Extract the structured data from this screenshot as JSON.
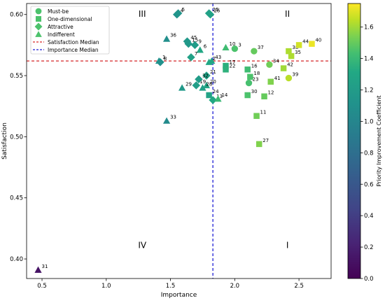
{
  "chart_data": {
    "type": "scatter",
    "xlabel": "Importance",
    "ylabel": "Satisfaction",
    "xlim": [
      0.38,
      2.75
    ],
    "ylim": [
      0.384,
      0.609
    ],
    "xticks": [
      0.5,
      1.0,
      1.5,
      2.0,
      2.5
    ],
    "yticks": [
      0.4,
      0.45,
      0.5,
      0.55,
      0.6
    ],
    "xtick_labels": [
      "0.5",
      "1.0",
      "1.5",
      "2.0",
      "2.5"
    ],
    "ytick_labels": [
      "0.40",
      "0.45",
      "0.50",
      "0.55",
      "0.60"
    ],
    "grid": false,
    "legend_position": "upper left",
    "legend": [
      {
        "label": "Must-be",
        "marker": "circle"
      },
      {
        "label": "One-dimensional",
        "marker": "square"
      },
      {
        "label": "Attractive",
        "marker": "diamond"
      },
      {
        "label": "Indifferent",
        "marker": "triangle"
      },
      {
        "label": "Satisfaction Median",
        "marker": "red-dashed-line"
      },
      {
        "label": "Importance Median",
        "marker": "blue-dashed-line"
      }
    ],
    "reference_lines": {
      "satisfaction_median": 0.562,
      "importance_median": 1.83,
      "satisfaction_color": "#d62728",
      "importance_color": "#1f1fd6"
    },
    "quadrant_labels": [
      {
        "text": "III",
        "x": 1.28,
        "y": 0.6
      },
      {
        "text": "II",
        "x": 2.41,
        "y": 0.6
      },
      {
        "text": "IV",
        "x": 1.28,
        "y": 0.411
      },
      {
        "text": "I",
        "x": 2.41,
        "y": 0.411
      }
    ],
    "colorbar": {
      "label": "Priority Improvement Coefficient",
      "min": 0.0,
      "max": 1.75,
      "ticks": [
        0.0,
        0.2,
        0.4,
        0.6,
        0.8,
        1.0,
        1.2,
        1.4,
        1.6
      ],
      "tick_labels": [
        "0.0",
        "0.2",
        "0.4",
        "0.6",
        "0.8",
        "1.0",
        "1.2",
        "1.4",
        "1.6"
      ],
      "colormap": "viridis"
    },
    "points": [
      {
        "label": "1",
        "x": 1.41,
        "y": 0.562,
        "type": "Indifferent",
        "coef": 1.1
      },
      {
        "label": "2",
        "x": 1.8,
        "y": 0.561,
        "type": "Indifferent",
        "coef": 1.3
      },
      {
        "label": "3",
        "x": 2.0,
        "y": 0.572,
        "type": "Must-be",
        "coef": 1.45
      },
      {
        "label": "4",
        "x": 1.55,
        "y": 0.6,
        "type": "Attractive",
        "coef": 1.12
      },
      {
        "label": "5",
        "x": 1.56,
        "y": 0.601,
        "type": "Attractive",
        "coef": 1.14
      },
      {
        "label": "6",
        "x": 1.73,
        "y": 0.571,
        "type": "Indifferent",
        "coef": 1.3
      },
      {
        "label": "7",
        "x": 1.66,
        "y": 0.565,
        "type": "Attractive",
        "coef": 1.25
      },
      {
        "label": "8",
        "x": 1.42,
        "y": 0.561,
        "type": "Attractive",
        "coef": 1.1
      },
      {
        "label": "9",
        "x": 1.69,
        "y": 0.575,
        "type": "Attractive",
        "coef": 1.2
      },
      {
        "label": "10",
        "x": 1.93,
        "y": 0.573,
        "type": "Indifferent",
        "coef": 1.42
      },
      {
        "label": "11",
        "x": 2.17,
        "y": 0.517,
        "type": "One-dimensional",
        "coef": 1.52
      },
      {
        "label": "12",
        "x": 2.23,
        "y": 0.533,
        "type": "One-dimensional",
        "coef": 1.5
      },
      {
        "label": "13",
        "x": 1.83,
        "y": 0.53,
        "type": "Attractive",
        "coef": 1.3
      },
      {
        "label": "14",
        "x": 1.87,
        "y": 0.531,
        "type": "Indifferent",
        "coef": 1.4
      },
      {
        "label": "15",
        "x": 1.64,
        "y": 0.576,
        "type": "Attractive",
        "coef": 1.18
      },
      {
        "label": "16",
        "x": 2.1,
        "y": 0.555,
        "type": "One-dimensional",
        "coef": 1.42
      },
      {
        "label": "17",
        "x": 1.93,
        "y": 0.558,
        "type": "One-dimensional",
        "coef": 1.35
      },
      {
        "label": "18",
        "x": 2.12,
        "y": 0.549,
        "type": "One-dimensional",
        "coef": 1.45
      },
      {
        "label": "19",
        "x": 1.7,
        "y": 0.542,
        "type": "Attractive",
        "coef": 1.22
      },
      {
        "label": "20",
        "x": 1.78,
        "y": 0.542,
        "type": "Indifferent",
        "coef": 1.28
      },
      {
        "label": "21",
        "x": 1.78,
        "y": 0.55,
        "type": "Attractive",
        "coef": 1.26
      },
      {
        "label": "22",
        "x": 1.93,
        "y": 0.555,
        "type": "One-dimensional",
        "coef": 1.36
      },
      {
        "label": "23",
        "x": 2.11,
        "y": 0.544,
        "type": "Must-be",
        "coef": 1.44
      },
      {
        "label": "24",
        "x": 1.8,
        "y": 0.534,
        "type": "One-dimensional",
        "coef": 1.27
      },
      {
        "label": "25",
        "x": 1.8,
        "y": 0.601,
        "type": "Attractive",
        "coef": 1.24
      },
      {
        "label": "26",
        "x": 1.81,
        "y": 0.6,
        "type": "Attractive",
        "coef": 1.26
      },
      {
        "label": "27",
        "x": 2.19,
        "y": 0.494,
        "type": "One-dimensional",
        "coef": 1.55
      },
      {
        "label": "28",
        "x": 1.75,
        "y": 0.54,
        "type": "Indifferent",
        "coef": 1.24
      },
      {
        "label": "29",
        "x": 1.59,
        "y": 0.54,
        "type": "Indifferent",
        "coef": 1.18
      },
      {
        "label": "30",
        "x": 2.1,
        "y": 0.534,
        "type": "One-dimensional",
        "coef": 1.45
      },
      {
        "label": "31",
        "x": 0.47,
        "y": 0.391,
        "type": "Indifferent",
        "coef": 0.12
      },
      {
        "label": "32",
        "x": 1.72,
        "y": 0.547,
        "type": "Attractive",
        "coef": 1.2
      },
      {
        "label": "33",
        "x": 1.47,
        "y": 0.513,
        "type": "Indifferent",
        "coef": 1.05
      },
      {
        "label": "34",
        "x": 2.27,
        "y": 0.559,
        "type": "Must-be",
        "coef": 1.52
      },
      {
        "label": "35",
        "x": 2.44,
        "y": 0.566,
        "type": "One-dimensional",
        "coef": 1.62
      },
      {
        "label": "36",
        "x": 1.47,
        "y": 0.58,
        "type": "Indifferent",
        "coef": 1.08
      },
      {
        "label": "37",
        "x": 2.15,
        "y": 0.57,
        "type": "Must-be",
        "coef": 1.5
      },
      {
        "label": "38",
        "x": 2.42,
        "y": 0.57,
        "type": "One-dimensional",
        "coef": 1.62
      },
      {
        "label": "39",
        "x": 2.42,
        "y": 0.548,
        "type": "Must-be",
        "coef": 1.64
      },
      {
        "label": "40",
        "x": 2.6,
        "y": 0.576,
        "type": "One-dimensional",
        "coef": 1.72
      },
      {
        "label": "41",
        "x": 2.28,
        "y": 0.545,
        "type": "One-dimensional",
        "coef": 1.55
      },
      {
        "label": "42",
        "x": 2.38,
        "y": 0.556,
        "type": "One-dimensional",
        "coef": 1.6
      },
      {
        "label": "43",
        "x": 1.82,
        "y": 0.562,
        "type": "Indifferent",
        "coef": 1.3
      },
      {
        "label": "44",
        "x": 2.5,
        "y": 0.575,
        "type": "One-dimensional",
        "coef": 1.68
      },
      {
        "label": "45",
        "x": 1.63,
        "y": 0.578,
        "type": "Attractive",
        "coef": 1.17
      }
    ]
  }
}
